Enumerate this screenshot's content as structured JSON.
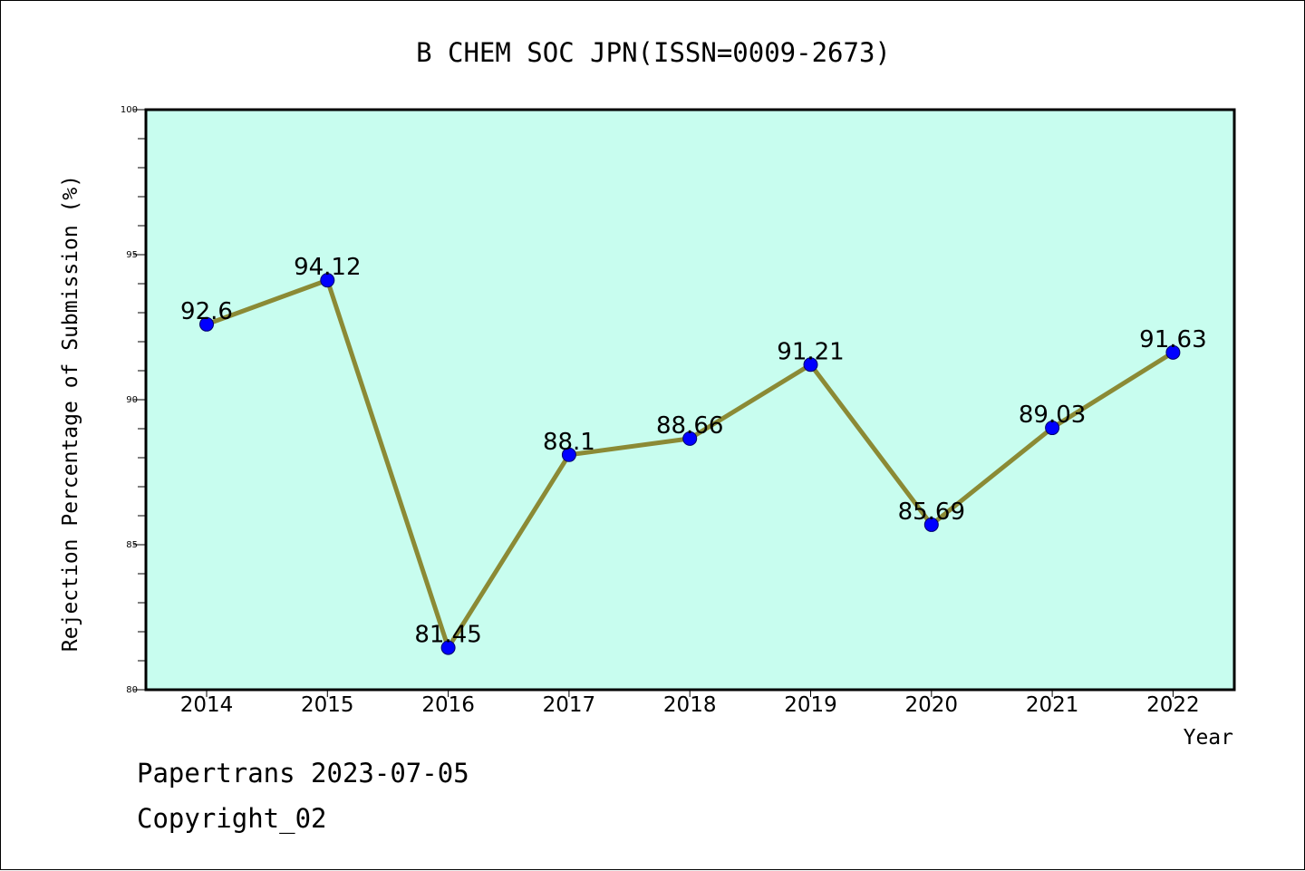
{
  "chart_data": {
    "type": "line",
    "title": "B CHEM SOC JPN(ISSN=0009-2673)",
    "xlabel": "Year",
    "ylabel": "Rejection Percentage of Submission (%)",
    "categories": [
      "2014",
      "2015",
      "2016",
      "2017",
      "2018",
      "2019",
      "2020",
      "2021",
      "2022"
    ],
    "series": [
      {
        "values": [
          92.6,
          94.12,
          81.45,
          88.1,
          88.66,
          91.21,
          85.69,
          89.03,
          91.63
        ],
        "labels": [
          "92.6",
          "94.12",
          "81.45",
          "88.1",
          "88.66",
          "91.21",
          "85.69",
          "89.03",
          "91.63"
        ],
        "line_color": "#8b8a35",
        "marker_color": "#0000ff"
      }
    ],
    "ylim": [
      80,
      100
    ],
    "yticks": [
      "80",
      "85",
      "90",
      "95",
      "100"
    ],
    "y_minor_step": 1,
    "plot_background": "#c8fdef",
    "grid": false,
    "legend": false
  },
  "footer": {
    "line1": "Papertrans 2023-07-05",
    "line2": "Copyright_02"
  }
}
